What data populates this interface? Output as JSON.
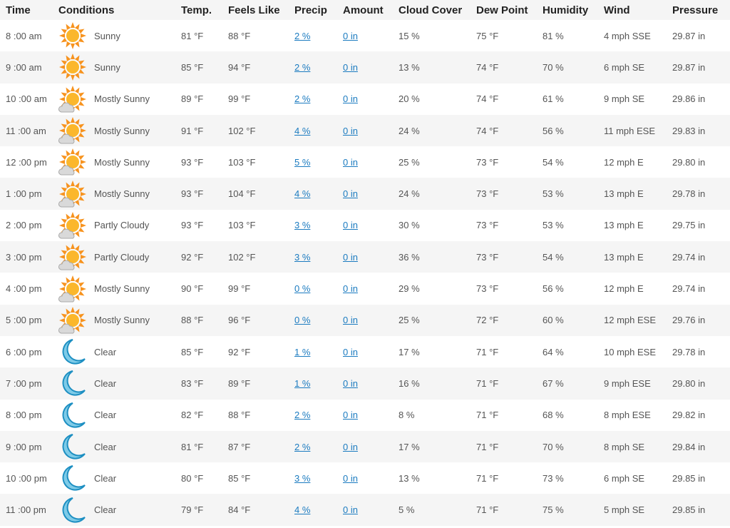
{
  "headers": [
    "Time",
    "Conditions",
    "Temp.",
    "Feels Like",
    "Precip",
    "Amount",
    "Cloud Cover",
    "Dew Point",
    "Humidity",
    "Wind",
    "Pressure"
  ],
  "colors": {
    "sun_rays": "#f7931e",
    "sun_core": "#fbb72c",
    "cloud": "#d9d9d9",
    "moon": "#7ecbe8",
    "moon_outline": "#1d8fc2",
    "link": "#1b7bc0",
    "row_alt": "#f5f5f5"
  },
  "rows": [
    {
      "time": "8 :00 am",
      "icon": "sun-icon",
      "cond": "Sunny",
      "temp": "81 °F",
      "feels": "88 °F",
      "precip": "2 %",
      "amount": "0 in",
      "cloud": "15 %",
      "dew": "75 °F",
      "hum": "81 %",
      "wind": "4 mph SSE",
      "pres": "29.87 in"
    },
    {
      "time": "9 :00 am",
      "icon": "sun-icon",
      "cond": "Sunny",
      "temp": "85 °F",
      "feels": "94 °F",
      "precip": "2 %",
      "amount": "0 in",
      "cloud": "13 %",
      "dew": "74 °F",
      "hum": "70 %",
      "wind": "6 mph SE",
      "pres": "29.87 in"
    },
    {
      "time": "10 :00 am",
      "icon": "sun-cloud-icon",
      "cond": "Mostly Sunny",
      "temp": "89 °F",
      "feels": "99 °F",
      "precip": "2 %",
      "amount": "0 in",
      "cloud": "20 %",
      "dew": "74 °F",
      "hum": "61 %",
      "wind": "9 mph SE",
      "pres": "29.86 in"
    },
    {
      "time": "11 :00 am",
      "icon": "sun-cloud-icon",
      "cond": "Mostly Sunny",
      "temp": "91 °F",
      "feels": "102 °F",
      "precip": "4 %",
      "amount": "0 in",
      "cloud": "24 %",
      "dew": "74 °F",
      "hum": "56 %",
      "wind": "11 mph ESE",
      "pres": "29.83 in"
    },
    {
      "time": "12 :00 pm",
      "icon": "sun-cloud-icon",
      "cond": "Mostly Sunny",
      "temp": "93 °F",
      "feels": "103 °F",
      "precip": "5 %",
      "amount": "0 in",
      "cloud": "25 %",
      "dew": "73 °F",
      "hum": "54 %",
      "wind": "12 mph E",
      "pres": "29.80 in"
    },
    {
      "time": "1 :00 pm",
      "icon": "sun-cloud-icon",
      "cond": "Mostly Sunny",
      "temp": "93 °F",
      "feels": "104 °F",
      "precip": "4 %",
      "amount": "0 in",
      "cloud": "24 %",
      "dew": "73 °F",
      "hum": "53 %",
      "wind": "13 mph E",
      "pres": "29.78 in"
    },
    {
      "time": "2 :00 pm",
      "icon": "sun-cloud-icon",
      "cond": "Partly Cloudy",
      "temp": "93 °F",
      "feels": "103 °F",
      "precip": "3 %",
      "amount": "0 in",
      "cloud": "30 %",
      "dew": "73 °F",
      "hum": "53 %",
      "wind": "13 mph E",
      "pres": "29.75 in"
    },
    {
      "time": "3 :00 pm",
      "icon": "sun-cloud-icon",
      "cond": "Partly Cloudy",
      "temp": "92 °F",
      "feels": "102 °F",
      "precip": "3 %",
      "amount": "0 in",
      "cloud": "36 %",
      "dew": "73 °F",
      "hum": "54 %",
      "wind": "13 mph E",
      "pres": "29.74 in"
    },
    {
      "time": "4 :00 pm",
      "icon": "sun-cloud-icon",
      "cond": "Mostly Sunny",
      "temp": "90 °F",
      "feels": "99 °F",
      "precip": "0 %",
      "amount": "0 in",
      "cloud": "29 %",
      "dew": "73 °F",
      "hum": "56 %",
      "wind": "12 mph E",
      "pres": "29.74 in"
    },
    {
      "time": "5 :00 pm",
      "icon": "sun-cloud-icon",
      "cond": "Mostly Sunny",
      "temp": "88 °F",
      "feels": "96 °F",
      "precip": "0 %",
      "amount": "0 in",
      "cloud": "25 %",
      "dew": "72 °F",
      "hum": "60 %",
      "wind": "12 mph ESE",
      "pres": "29.76 in"
    },
    {
      "time": "6 :00 pm",
      "icon": "moon-icon",
      "cond": "Clear",
      "temp": "85 °F",
      "feels": "92 °F",
      "precip": "1 %",
      "amount": "0 in",
      "cloud": "17 %",
      "dew": "71 °F",
      "hum": "64 %",
      "wind": "10 mph ESE",
      "pres": "29.78 in"
    },
    {
      "time": "7 :00 pm",
      "icon": "moon-icon",
      "cond": "Clear",
      "temp": "83 °F",
      "feels": "89 °F",
      "precip": "1 %",
      "amount": "0 in",
      "cloud": "16 %",
      "dew": "71 °F",
      "hum": "67 %",
      "wind": "9 mph ESE",
      "pres": "29.80 in"
    },
    {
      "time": "8 :00 pm",
      "icon": "moon-icon",
      "cond": "Clear",
      "temp": "82 °F",
      "feels": "88 °F",
      "precip": "2 %",
      "amount": "0 in",
      "cloud": "8 %",
      "dew": "71 °F",
      "hum": "68 %",
      "wind": "8 mph ESE",
      "pres": "29.82 in"
    },
    {
      "time": "9 :00 pm",
      "icon": "moon-icon",
      "cond": "Clear",
      "temp": "81 °F",
      "feels": "87 °F",
      "precip": "2 %",
      "amount": "0 in",
      "cloud": "17 %",
      "dew": "71 °F",
      "hum": "70 %",
      "wind": "8 mph SE",
      "pres": "29.84 in"
    },
    {
      "time": "10 :00 pm",
      "icon": "moon-icon",
      "cond": "Clear",
      "temp": "80 °F",
      "feels": "85 °F",
      "precip": "3 %",
      "amount": "0 in",
      "cloud": "13 %",
      "dew": "71 °F",
      "hum": "73 %",
      "wind": "6 mph SE",
      "pres": "29.85 in"
    },
    {
      "time": "11 :00 pm",
      "icon": "moon-icon",
      "cond": "Clear",
      "temp": "79 °F",
      "feels": "84 °F",
      "precip": "4 %",
      "amount": "0 in",
      "cloud": "5 %",
      "dew": "71 °F",
      "hum": "75 %",
      "wind": "5 mph SE",
      "pres": "29.85 in"
    }
  ]
}
